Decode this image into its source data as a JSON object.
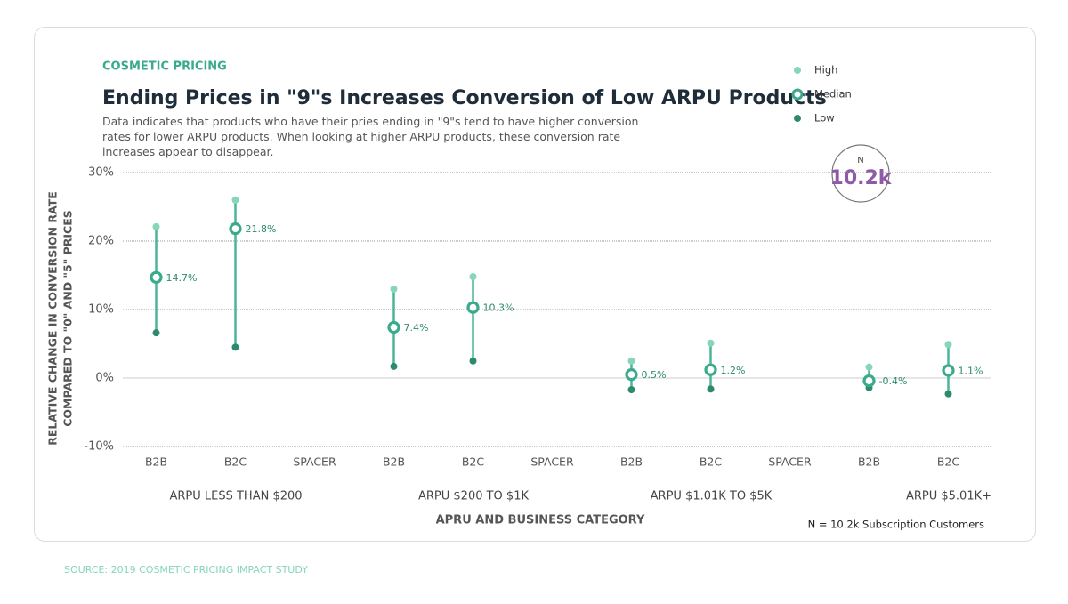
{
  "chart_data": {
    "type": "range_dot",
    "kicker": "COSMETIC PRICING",
    "title": "Ending Prices in \"9\"s Increases Conversion of Low ARPU Products",
    "subtitle": "Data indicates that products who have their pries ending in \"9\"s tend to have higher conversion rates for lower ARPU products. When looking at higher ARPU products, these conversion rate increases appear to disappear.",
    "y_label": [
      "RELATIVE CHANGE IN CONVERSION RATE",
      "COMPARED TO \"0\" AND \"5\" PRICES"
    ],
    "x_label": "APRU AND BUSINESS CATEGORY",
    "categories": [
      "B2B",
      "B2C",
      "SPACER",
      "B2B",
      "B2C",
      "SPACER",
      "B2B",
      "B2C",
      "SPACER",
      "B2B",
      "B2C"
    ],
    "groups": [
      "ARPU LESS THAN $200",
      "ARPU $200 TO $1K",
      "ARPU $1.01K TO $5K",
      "ARPU $5.01K+"
    ],
    "series": [
      {
        "name": "High",
        "color": "#86d6b8",
        "values": [
          22.1,
          26.0,
          null,
          13.0,
          14.8,
          null,
          2.5,
          5.1,
          null,
          1.6,
          4.9
        ]
      },
      {
        "name": "Median",
        "color": "#3aaa8c",
        "values": [
          14.7,
          21.8,
          null,
          7.4,
          10.3,
          null,
          0.5,
          1.2,
          null,
          -0.4,
          1.1
        ],
        "value_labels": [
          "14.7%",
          "21.8%",
          null,
          "7.4%",
          "10.3%",
          null,
          "0.5%",
          "1.2%",
          null,
          "-0.4%",
          "1.1%"
        ]
      },
      {
        "name": "Low",
        "color": "#2d8a6c",
        "values": [
          6.6,
          4.5,
          null,
          1.7,
          2.5,
          null,
          -1.7,
          -1.6,
          null,
          -1.4,
          -2.3
        ]
      }
    ],
    "ylim": [
      -10,
      30
    ],
    "yticks": [
      {
        "value": -10,
        "label": "-10%"
      },
      {
        "value": 0,
        "label": "0%"
      },
      {
        "value": 10,
        "label": "10%"
      },
      {
        "value": 20,
        "label": "20%"
      },
      {
        "value": 30,
        "label": "30%"
      }
    ],
    "grid": true,
    "badge": {
      "label": "N",
      "value": "10.2k"
    },
    "note": "N = 10.2k Subscription Customers",
    "source": "SOURCE: 2019 COSMETIC PRICING IMPACT STUDY"
  }
}
